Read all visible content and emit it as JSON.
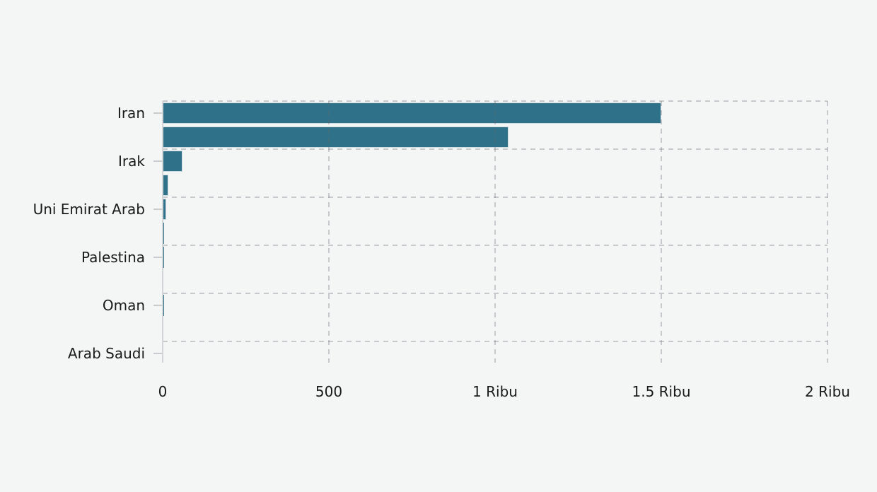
{
  "chart_data": {
    "type": "bar",
    "orientation": "horizontal",
    "title": "",
    "xlabel": "",
    "ylabel": "",
    "xlim": [
      0,
      2000
    ],
    "grid": "dashed",
    "legend": "none",
    "bars": [
      {
        "label": "Iran",
        "value": 1500
      },
      {
        "label": "",
        "value": 1040
      },
      {
        "label": "Irak",
        "value": 60
      },
      {
        "label": "",
        "value": 18
      },
      {
        "label": "Uni Emirat Arab",
        "value": 10
      },
      {
        "label": "",
        "value": 5
      },
      {
        "label": "Palestina",
        "value": 5
      },
      {
        "label": "",
        "value": 3
      },
      {
        "label": "Oman",
        "value": 4
      },
      {
        "label": "",
        "value": 1
      },
      {
        "label": "Arab Saudi",
        "value": 0
      }
    ],
    "x_ticks": [
      {
        "value": 0,
        "label": "0"
      },
      {
        "value": 500,
        "label": "500"
      },
      {
        "value": 1000,
        "label": "1 Ribu"
      },
      {
        "value": 1500,
        "label": "1.5 Ribu"
      },
      {
        "value": 2000,
        "label": "2 Ribu"
      }
    ]
  },
  "colors": {
    "background": "#f4f5f5",
    "bar": "#2f7189",
    "bar_border": "#ccdae2",
    "axis_line": "#d3d6d9",
    "tick": "#c9cccf",
    "text": "#1a1a1a"
  }
}
